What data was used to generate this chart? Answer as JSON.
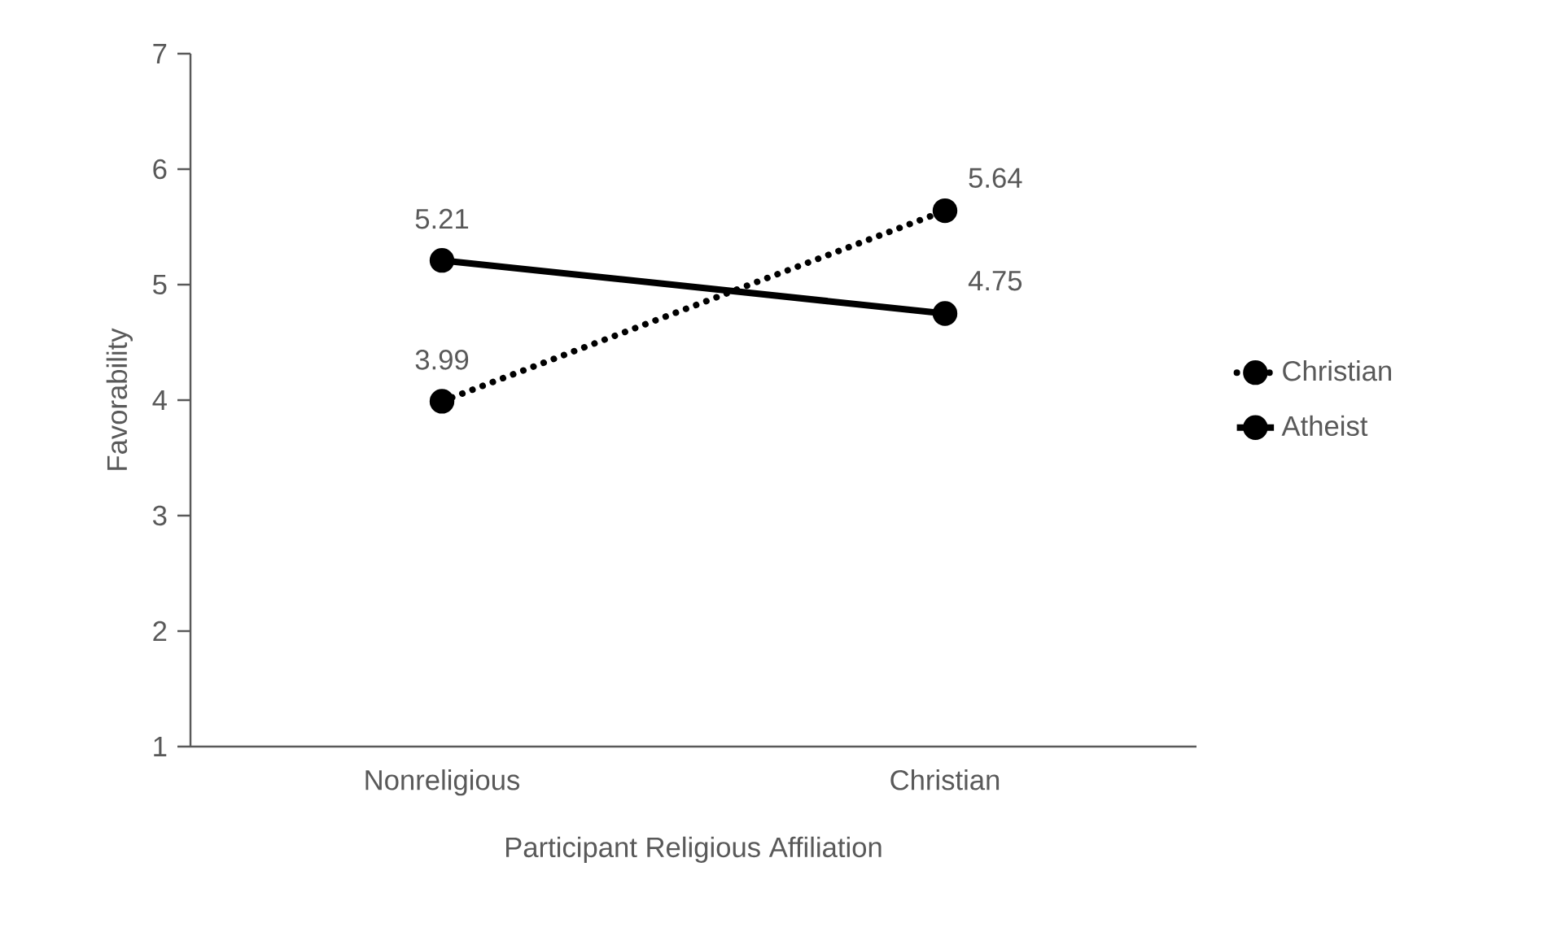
{
  "chart_data": {
    "type": "line",
    "xlabel": "Participant Religious Affiliation",
    "ylabel": "Favorability",
    "categories": [
      "Nonreligious",
      "Christian"
    ],
    "series": [
      {
        "name": "Christian",
        "color": "#000000",
        "values": [
          3.99,
          5.64
        ],
        "line_style": "dotted"
      },
      {
        "name": "Atheist",
        "color": "#000000",
        "values": [
          5.21,
          4.75
        ],
        "line_style": "solid"
      }
    ],
    "ylim": [
      1,
      7
    ],
    "yticks": [
      1,
      2,
      3,
      4,
      5,
      6,
      7
    ],
    "grid": false,
    "legend": "right",
    "marker": "circle",
    "data_labels": true
  }
}
